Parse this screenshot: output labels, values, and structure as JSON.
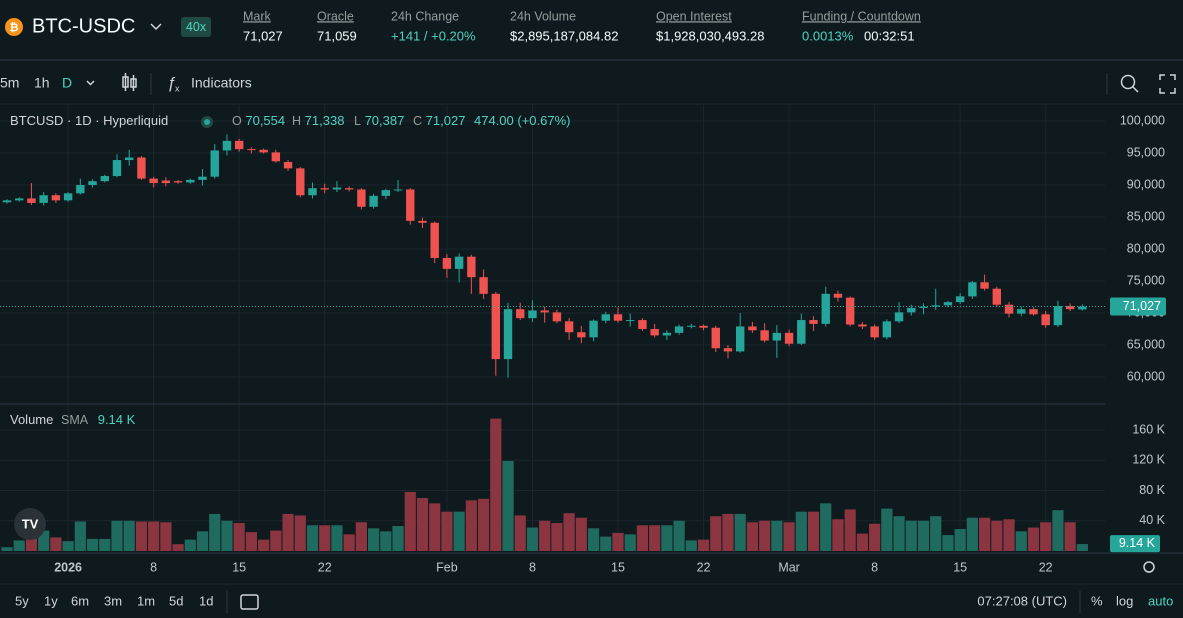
{
  "header": {
    "symbol": "BTC-USDC",
    "leverage": "40x",
    "stats": [
      {
        "label": "Mark",
        "value": "71,027"
      },
      {
        "label": "Oracle",
        "value": "71,059"
      },
      {
        "label": "24h Change",
        "value": "+141 / +0.20%"
      },
      {
        "label": "24h Volume",
        "value": "$2,895,187,084.82"
      },
      {
        "label": "Open Interest",
        "value": "$1,928,030,493.28"
      },
      {
        "label": "Funding / Countdown",
        "value": "0.0013%",
        "countdown": "00:32:51"
      }
    ]
  },
  "toolbar": {
    "intervals": [
      "5m",
      "1h",
      "D"
    ],
    "indicators": "Indicators"
  },
  "legend": {
    "symbol": "BTCUSD · 1D · Hyperliquid",
    "ohlc": [
      {
        "label": "O",
        "value": "70,554"
      },
      {
        "label": "H",
        "value": "71,338"
      },
      {
        "label": "L",
        "value": "70,387"
      },
      {
        "label": "C",
        "value": "71,027"
      }
    ],
    "change": "474.00 (+0.67%)"
  },
  "volume_legend": {
    "name": "Volume",
    "indicator": "SMA",
    "value": "9.14 K"
  },
  "footer": {
    "ranges": [
      "5y",
      "1y",
      "6m",
      "3m",
      "1m",
      "5d",
      "1d"
    ],
    "time": "07:27:08 (UTC)",
    "options": [
      "%",
      "log",
      "auto"
    ]
  },
  "chart_data": [
    {
      "type": "candlestick",
      "up_color": "#26a69a",
      "down_color": "#ef5350",
      "categories": [
        null,
        null,
        null,
        null,
        null,
        "2026",
        null,
        null,
        null,
        null,
        null,
        null,
        "8",
        null,
        null,
        null,
        null,
        null,
        null,
        "15",
        null,
        null,
        null,
        null,
        null,
        null,
        "22",
        null,
        null,
        null,
        null,
        null,
        null,
        null,
        null,
        null,
        "Feb",
        null,
        null,
        null,
        null,
        null,
        null,
        "8",
        null,
        null,
        null,
        null,
        null,
        null,
        "15",
        null,
        null,
        null,
        null,
        null,
        null,
        "22",
        null,
        null,
        null,
        null,
        null,
        null,
        "Mar",
        null,
        null,
        null,
        null,
        null,
        null,
        "8",
        null,
        null,
        null,
        null,
        null,
        null,
        "15",
        null,
        null,
        null,
        null,
        null,
        null,
        "22",
        null,
        null,
        null
      ],
      "open": [
        87300,
        87600,
        87900,
        87200,
        88400,
        87600,
        88700,
        90000,
        90600,
        91400,
        93900,
        94300,
        91000,
        90700,
        90600,
        90400,
        90800,
        91300,
        95400,
        96900,
        95600,
        95500,
        95100,
        93600,
        92600,
        88400,
        89500,
        89300,
        89500,
        89300,
        86600,
        88300,
        89200,
        89300,
        84400,
        84100,
        78600,
        76900,
        78800,
        75600,
        73000,
        62800,
        70600,
        69200,
        70400,
        70100,
        68700,
        67000,
        66200,
        68800,
        69800,
        68800,
        68900,
        67500,
        66500,
        66900,
        67900,
        68000,
        67700,
        64500,
        64000,
        67900,
        67300,
        65700,
        66900,
        65200,
        68900,
        68300,
        73000,
        72400,
        68200,
        67900,
        66200,
        68700,
        70100,
        70800,
        71000,
        71200,
        71700,
        72600,
        74800,
        73800,
        71300,
        69900,
        70600,
        69800,
        68100,
        71100,
        70554
      ],
      "high": [
        87800,
        88100,
        90300,
        88900,
        88700,
        88900,
        91000,
        90900,
        91600,
        94800,
        95500,
        94500,
        91300,
        91200,
        90800,
        91000,
        92500,
        96400,
        97900,
        97200,
        95900,
        95700,
        95500,
        93900,
        92800,
        90400,
        90200,
        90600,
        89800,
        89500,
        88600,
        89400,
        90800,
        89500,
        84900,
        84300,
        79200,
        79300,
        79100,
        76800,
        73300,
        71600,
        71600,
        72000,
        71000,
        70500,
        69200,
        68000,
        69000,
        70200,
        70900,
        69900,
        69200,
        68300,
        67300,
        68200,
        68300,
        68200,
        68000,
        65000,
        70000,
        68600,
        68400,
        68100,
        67400,
        69900,
        69500,
        74100,
        73500,
        72600,
        68600,
        68200,
        69000,
        71700,
        71300,
        71500,
        73800,
        71900,
        73100,
        75000,
        76000,
        74100,
        71700,
        71000,
        70900,
        70300,
        71900,
        71500,
        71338
      ],
      "low": [
        87100,
        87400,
        86900,
        86800,
        87200,
        87400,
        88500,
        89600,
        90400,
        91200,
        93000,
        90800,
        89600,
        89800,
        90200,
        90200,
        89900,
        91000,
        94600,
        95200,
        94900,
        94900,
        93500,
        92200,
        88100,
        87900,
        88700,
        88900,
        89000,
        86200,
        86300,
        87800,
        88900,
        83800,
        83300,
        77800,
        75500,
        74800,
        73000,
        72200,
        60200,
        59900,
        68900,
        68600,
        68500,
        68400,
        65800,
        65300,
        65600,
        68400,
        68500,
        67900,
        67200,
        66200,
        65800,
        66600,
        67600,
        67300,
        63900,
        62900,
        63800,
        66900,
        65400,
        63000,
        64800,
        65000,
        67200,
        67900,
        71800,
        67900,
        67500,
        65800,
        65900,
        68400,
        69600,
        69800,
        70500,
        70900,
        71400,
        72200,
        73500,
        70900,
        69300,
        69500,
        69600,
        67700,
        67800,
        70300,
        70387
      ],
      "close": [
        87600,
        87900,
        87200,
        88400,
        87600,
        88700,
        90000,
        90600,
        91400,
        93900,
        94300,
        91000,
        90300,
        90300,
        90400,
        90800,
        91300,
        95400,
        96900,
        95600,
        95500,
        95100,
        93700,
        92600,
        88400,
        89500,
        89300,
        89600,
        89300,
        86600,
        88300,
        89200,
        89300,
        84400,
        84100,
        78600,
        76900,
        78800,
        75600,
        73000,
        62800,
        70600,
        69200,
        70400,
        70100,
        68700,
        67000,
        66200,
        68800,
        69800,
        68800,
        68900,
        67500,
        66500,
        66900,
        67900,
        68000,
        67700,
        64500,
        64000,
        67900,
        67300,
        65700,
        66900,
        65200,
        68900,
        68300,
        73000,
        72400,
        68200,
        67900,
        66200,
        68700,
        70100,
        70800,
        71000,
        71200,
        71700,
        72600,
        74800,
        73800,
        71300,
        69900,
        70600,
        69800,
        68100,
        71100,
        70600,
        71027
      ],
      "price_tag": "71,027",
      "ylim": [
        55940,
        102500
      ],
      "yticks": [
        {
          "value": 60000,
          "label": "60,000"
        },
        {
          "value": 65000,
          "label": "65,000"
        },
        {
          "value": 70000,
          "label": "70,000"
        },
        {
          "value": 75000,
          "label": "75,000"
        },
        {
          "value": 80000,
          "label": "80,000"
        },
        {
          "value": 85000,
          "label": "85,000"
        },
        {
          "value": 90000,
          "label": "90,000"
        },
        {
          "value": 95000,
          "label": "95,000"
        },
        {
          "value": 100000,
          "label": "100,000"
        }
      ],
      "grid": true
    },
    {
      "type": "bar",
      "up_color": "#1f6b60",
      "down_color": "#8a3540",
      "values": [
        5000,
        14000,
        22000,
        27000,
        18000,
        13000,
        39000,
        16000,
        16000,
        40000,
        40000,
        39000,
        39000,
        38000,
        9000,
        15000,
        26000,
        49000,
        40000,
        37000,
        25000,
        15000,
        27000,
        49000,
        47000,
        34000,
        34000,
        34000,
        22000,
        38000,
        30000,
        26000,
        33000,
        78000,
        70000,
        63000,
        52000,
        52000,
        67000,
        69000,
        175000,
        119000,
        47000,
        31000,
        40000,
        37000,
        50000,
        44000,
        30000,
        19000,
        24000,
        22000,
        34000,
        34000,
        34000,
        40000,
        14000,
        15000,
        46000,
        49000,
        49000,
        38000,
        40000,
        40000,
        38000,
        52000,
        52000,
        63000,
        42000,
        55000,
        23000,
        36000,
        56000,
        46000,
        40000,
        40000,
        46000,
        21000,
        29000,
        44000,
        44000,
        40000,
        42000,
        26000,
        31000,
        38000,
        54000,
        38000,
        9140
      ],
      "volume_tag": "9.14 K",
      "ylim": [
        0,
        193000
      ],
      "yticks": [
        {
          "value": 40000,
          "label": "40 K"
        },
        {
          "value": 80000,
          "label": "80 K"
        },
        {
          "value": 120000,
          "label": "120 K"
        },
        {
          "value": 160000,
          "label": "160 K"
        }
      ],
      "grid": true
    }
  ]
}
